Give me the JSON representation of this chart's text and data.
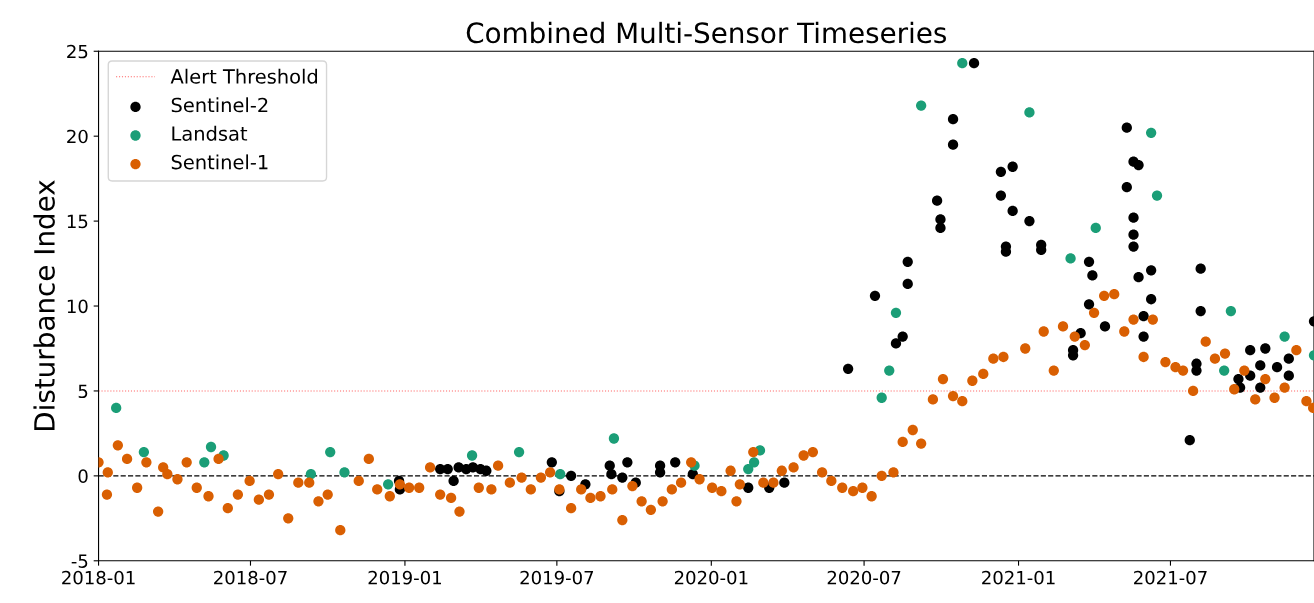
{
  "chart_data": {
    "type": "scatter",
    "title": "Combined Multi-Sensor Timeseries",
    "ylabel": "Disturbance Index",
    "xlim": [
      "2018-01-01",
      "2021-12-19"
    ],
    "ylim": [
      -5,
      25
    ],
    "xticks": [
      "2018-01",
      "2018-07",
      "2019-01",
      "2019-07",
      "2020-01",
      "2020-07",
      "2021-01",
      "2021-07"
    ],
    "yticks": [
      -5,
      0,
      5,
      10,
      15,
      20,
      25
    ],
    "grid": false,
    "legend": "top left",
    "marker": "circle",
    "ref_lines": [
      {
        "axis": "y",
        "value": 5,
        "label": "Alert Threshold",
        "color": "#ff6666",
        "line_style": "dotted"
      },
      {
        "axis": "y",
        "value": 0,
        "color": "#000000",
        "line_style": "dashed"
      }
    ],
    "series": [
      {
        "name": "Sentinel-2",
        "color": "#000000",
        "x": [
          "2018-12-25",
          "2018-12-26",
          "2019-02-12",
          "2019-02-21",
          "2019-02-28",
          "2019-03-06",
          "2019-03-15",
          "2019-03-23",
          "2019-04-01",
          "2019-04-08",
          "2019-06-25",
          "2019-07-04",
          "2019-07-18",
          "2019-08-04",
          "2019-09-02",
          "2019-09-04",
          "2019-09-17",
          "2019-09-23",
          "2019-10-03",
          "2019-11-01",
          "2019-11-01",
          "2019-11-19",
          "2019-12-10",
          "2020-02-14",
          "2020-03-10",
          "2020-03-28",
          "2020-06-12",
          "2020-07-14",
          "2020-08-08",
          "2020-08-16",
          "2020-08-22",
          "2020-08-22",
          "2020-09-26",
          "2020-09-30",
          "2020-09-30",
          "2020-10-15",
          "2020-10-15",
          "2020-11-09",
          "2020-12-11",
          "2020-12-11",
          "2020-12-17",
          "2020-12-17",
          "2020-12-25",
          "2020-12-25",
          "2021-01-14",
          "2021-01-28",
          "2021-01-28",
          "2021-03-07",
          "2021-03-07",
          "2021-03-16",
          "2021-03-26",
          "2021-03-26",
          "2021-03-30",
          "2021-04-14",
          "2021-05-10",
          "2021-05-10",
          "2021-05-18",
          "2021-05-18",
          "2021-05-18",
          "2021-05-18",
          "2021-05-24",
          "2021-05-24",
          "2021-05-30",
          "2021-05-30",
          "2021-06-08",
          "2021-06-08",
          "2021-07-24",
          "2021-08-01",
          "2021-08-01",
          "2021-08-06",
          "2021-08-06",
          "2021-09-20",
          "2021-09-22",
          "2021-10-04",
          "2021-10-04",
          "2021-10-16",
          "2021-10-16",
          "2021-10-22",
          "2021-11-05",
          "2021-11-19",
          "2021-11-19",
          "2021-12-19"
        ],
        "values": [
          -0.3,
          -0.8,
          0.4,
          0.4,
          -0.3,
          0.5,
          0.4,
          0.5,
          0.4,
          0.3,
          0.8,
          -0.9,
          0.0,
          -0.5,
          0.6,
          0.1,
          -0.1,
          0.8,
          -0.4,
          0.6,
          0.2,
          0.8,
          0.1,
          -0.7,
          -0.7,
          -0.4,
          6.3,
          10.6,
          7.8,
          8.2,
          12.6,
          11.3,
          16.2,
          15.1,
          14.6,
          21.0,
          19.5,
          24.3,
          17.9,
          16.5,
          13.5,
          13.2,
          18.2,
          15.6,
          15.0,
          13.6,
          13.3,
          7.4,
          7.1,
          8.4,
          12.6,
          10.1,
          11.8,
          8.8,
          20.5,
          17.0,
          18.5,
          15.2,
          14.2,
          13.5,
          18.3,
          11.7,
          9.4,
          8.2,
          12.1,
          10.4,
          2.1,
          6.6,
          6.2,
          12.2,
          9.7,
          5.7,
          5.2,
          7.4,
          5.9,
          6.5,
          5.2,
          7.5,
          6.4,
          6.9,
          5.9,
          9.1
        ]
      },
      {
        "name": "Landsat",
        "color": "#1b9e77",
        "x": [
          "2018-01-22",
          "2018-02-24",
          "2018-05-07",
          "2018-05-15",
          "2018-05-30",
          "2018-09-11",
          "2018-10-04",
          "2018-10-21",
          "2018-12-12",
          "2019-03-22",
          "2019-05-17",
          "2019-07-05",
          "2019-09-07",
          "2019-12-12",
          "2020-02-14",
          "2020-02-21",
          "2020-02-28",
          "2020-07-22",
          "2020-07-31",
          "2020-08-08",
          "2020-09-07",
          "2020-10-26",
          "2021-01-14",
          "2021-03-04",
          "2021-04-03",
          "2021-06-08",
          "2021-06-15",
          "2021-09-03",
          "2021-09-11",
          "2021-11-14",
          "2021-12-19"
        ],
        "values": [
          4.0,
          1.4,
          0.8,
          1.7,
          1.2,
          0.1,
          1.4,
          0.2,
          -0.5,
          1.2,
          1.4,
          0.1,
          2.2,
          0.6,
          0.4,
          0.8,
          1.5,
          4.6,
          6.2,
          9.6,
          21.8,
          24.3,
          21.4,
          12.8,
          14.6,
          20.2,
          16.5,
          6.2,
          9.7,
          8.2,
          7.1
        ]
      },
      {
        "name": "Sentinel-1",
        "color": "#d95f02",
        "x": [
          "2018-01-01",
          "2018-01-11",
          "2018-01-12",
          "2018-01-24",
          "2018-02-04",
          "2018-02-16",
          "2018-02-27",
          "2018-03-13",
          "2018-03-19",
          "2018-03-24",
          "2018-04-05",
          "2018-04-16",
          "2018-04-28",
          "2018-05-12",
          "2018-05-24",
          "2018-06-04",
          "2018-06-16",
          "2018-06-30",
          "2018-07-11",
          "2018-07-23",
          "2018-08-03",
          "2018-08-15",
          "2018-08-27",
          "2018-09-09",
          "2018-09-20",
          "2018-10-01",
          "2018-10-16",
          "2018-11-07",
          "2018-11-19",
          "2018-11-29",
          "2018-12-14",
          "2018-12-26",
          "2019-01-06",
          "2019-01-18",
          "2019-01-31",
          "2019-02-12",
          "2019-02-25",
          "2019-03-07",
          "2019-03-30",
          "2019-04-14",
          "2019-04-22",
          "2019-05-06",
          "2019-05-20",
          "2019-05-31",
          "2019-06-12",
          "2019-06-23",
          "2019-07-04",
          "2019-07-18",
          "2019-07-30",
          "2019-08-10",
          "2019-08-22",
          "2019-09-05",
          "2019-09-17",
          "2019-09-29",
          "2019-10-10",
          "2019-10-21",
          "2019-11-04",
          "2019-11-15",
          "2019-11-26",
          "2019-12-08",
          "2019-12-18",
          "2020-01-02",
          "2020-01-13",
          "2020-01-24",
          "2020-01-31",
          "2020-02-04",
          "2020-02-20",
          "2020-03-03",
          "2020-03-15",
          "2020-03-25",
          "2020-04-08",
          "2020-04-20",
          "2020-05-01",
          "2020-05-12",
          "2020-05-23",
          "2020-06-05",
          "2020-06-18",
          "2020-06-29",
          "2020-07-10",
          "2020-07-22",
          "2020-08-05",
          "2020-08-16",
          "2020-08-28",
          "2020-09-07",
          "2020-09-21",
          "2020-10-03",
          "2020-10-15",
          "2020-10-26",
          "2020-11-07",
          "2020-11-20",
          "2020-12-02",
          "2020-12-14",
          "2021-01-09",
          "2021-01-31",
          "2021-02-12",
          "2021-02-23",
          "2021-03-09",
          "2021-03-21",
          "2021-04-01",
          "2021-04-13",
          "2021-04-25",
          "2021-05-07",
          "2021-05-18",
          "2021-05-30",
          "2021-06-10",
          "2021-06-25",
          "2021-07-07",
          "2021-07-16",
          "2021-07-28",
          "2021-08-12",
          "2021-08-23",
          "2021-09-04",
          "2021-09-15",
          "2021-09-27",
          "2021-10-10",
          "2021-10-22",
          "2021-11-02",
          "2021-11-14",
          "2021-11-28",
          "2021-12-10",
          "2021-12-18"
        ],
        "values": [
          0.8,
          -1.1,
          0.2,
          1.8,
          1.0,
          -0.7,
          0.8,
          -2.1,
          0.5,
          0.1,
          -0.2,
          0.8,
          -0.7,
          -1.2,
          1.0,
          -1.9,
          -1.1,
          -0.3,
          -1.4,
          -1.1,
          0.1,
          -2.5,
          -0.4,
          -0.4,
          -1.5,
          -1.1,
          -3.2,
          -0.3,
          1.0,
          -0.8,
          -1.2,
          -0.5,
          -0.7,
          -0.7,
          0.5,
          -1.1,
          -1.3,
          -2.1,
          -0.7,
          -0.8,
          0.6,
          -0.4,
          -0.1,
          -0.8,
          -0.1,
          0.2,
          -0.8,
          -1.9,
          -0.8,
          -1.3,
          -1.2,
          -0.8,
          -2.6,
          -0.6,
          -1.5,
          -2.0,
          -1.5,
          -0.8,
          -0.4,
          0.8,
          -0.2,
          -0.7,
          -0.9,
          0.3,
          -1.5,
          -0.5,
          1.4,
          -0.4,
          -0.4,
          0.3,
          0.5,
          1.2,
          1.4,
          0.2,
          -0.3,
          -0.7,
          -0.9,
          -0.7,
          -1.2,
          0.0,
          0.2,
          2.0,
          2.7,
          1.9,
          4.5,
          5.7,
          4.7,
          4.4,
          5.6,
          6.0,
          6.9,
          7.0,
          7.5,
          8.5,
          6.2,
          8.8,
          8.2,
          7.7,
          9.6,
          10.6,
          10.7,
          8.5,
          9.2,
          7.0,
          9.2,
          6.7,
          6.4,
          6.2,
          5.0,
          7.9,
          6.9,
          7.2,
          5.1,
          6.2,
          4.5,
          5.7,
          4.6,
          5.2,
          7.4,
          4.4,
          4.0
        ]
      }
    ]
  }
}
